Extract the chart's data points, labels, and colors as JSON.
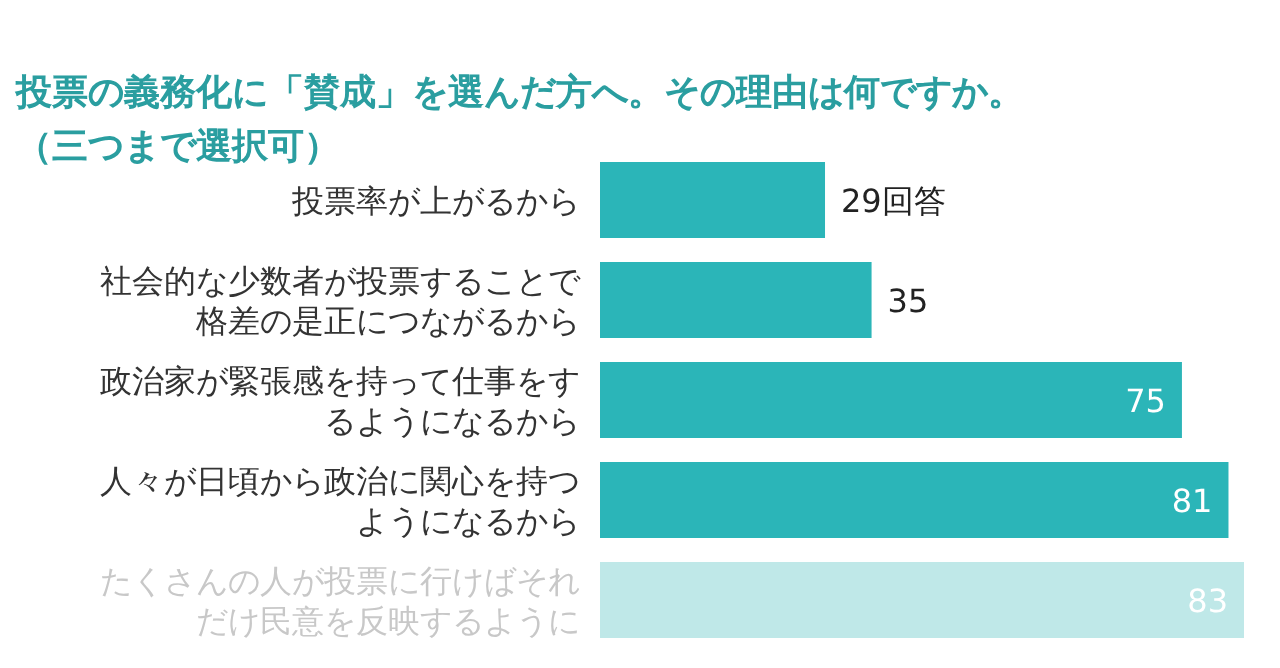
{
  "chart_data": {
    "type": "bar",
    "orientation": "horizontal",
    "title": "投票の義務化に「賛成」を選んだ方へ。その理由は何ですか。",
    "subtitle": "（三つまで選択可）",
    "categories": [
      "投票率が上がるから",
      "社会的な少数者が投票することで格差の是正につながるから",
      "政治家が緊張感を持って仕事をするようになるから",
      "人々が日頃から政治に関心を持つようになるから",
      "たくさんの人が投票に行けばそれだけ民意を反映するように"
    ],
    "values": [
      29,
      35,
      75,
      81,
      83
    ],
    "colors": [
      "#2bb5b8",
      "#2bb5b8",
      "#2bb5b8",
      "#2bb5b8",
      "#bfe8e8"
    ],
    "value_labels": [
      "29回答",
      "35",
      "75",
      "81",
      "83"
    ]
  }
}
